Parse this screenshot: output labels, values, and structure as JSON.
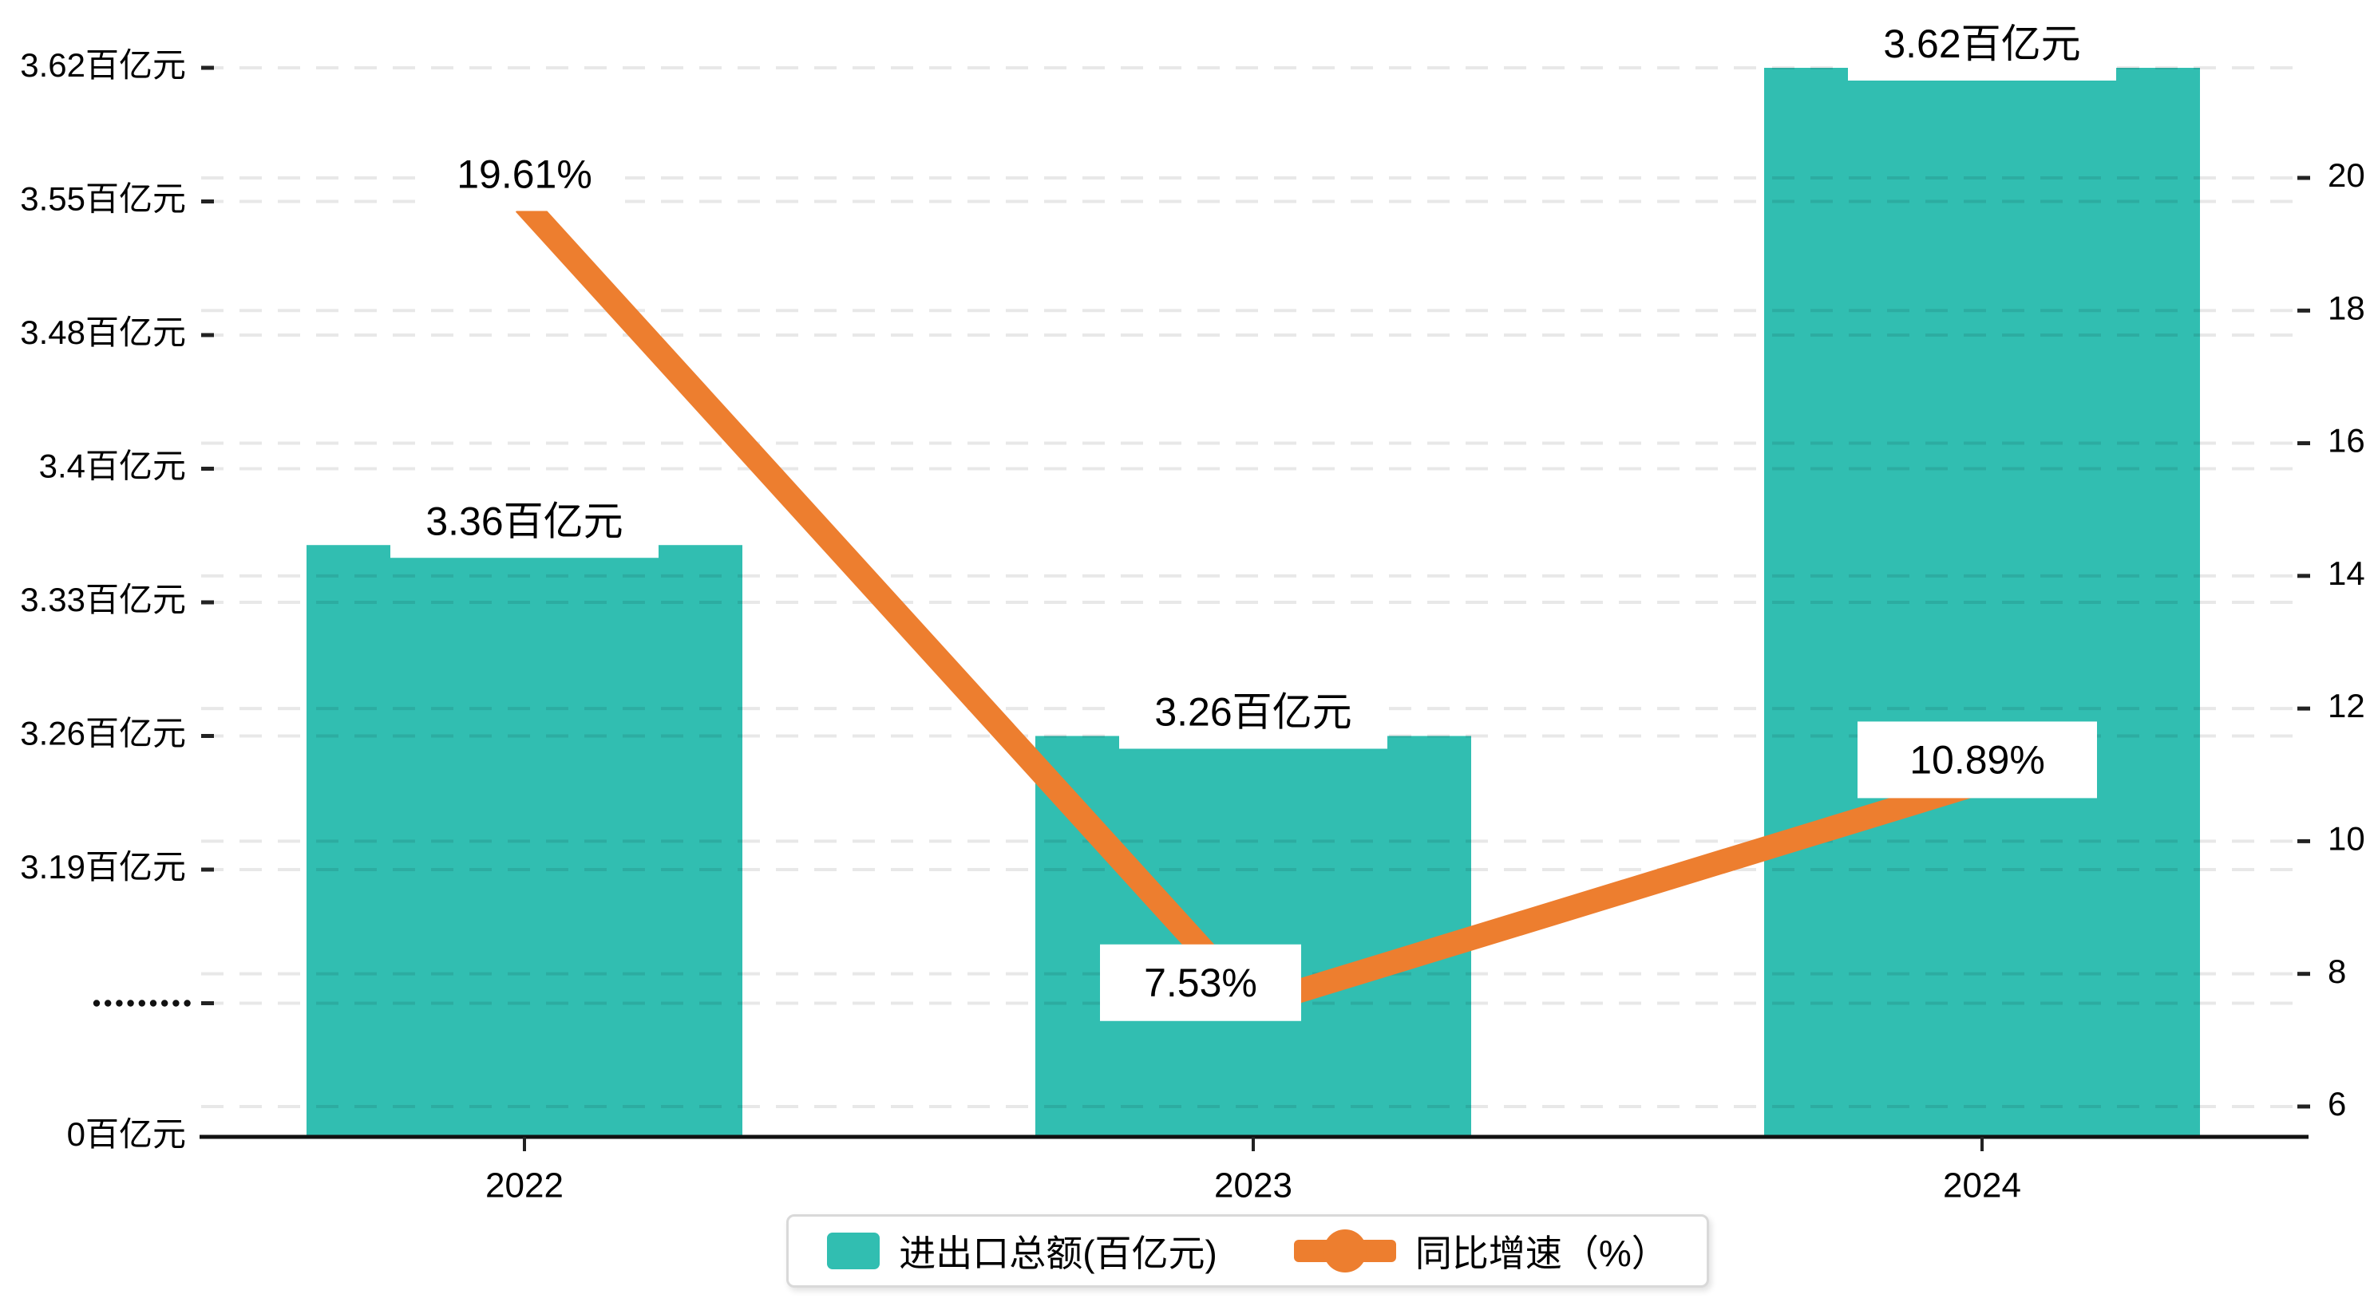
{
  "legend": {
    "items": [
      {
        "label": "进出口总额(百亿元)",
        "marker": "bar-swatch"
      },
      {
        "label": "同比增速（%）",
        "marker": "line-dot-swatch"
      }
    ]
  },
  "chart_data": {
    "type": "combo",
    "categories": [
      "2022",
      "2023",
      "2024"
    ],
    "series": [
      {
        "name": "进出口总额(百亿元)",
        "type": "bar",
        "axis": "left",
        "unit": "百亿元",
        "values": [
          3.36,
          3.26,
          3.62
        ],
        "data_labels": [
          "3.36百亿元",
          "3.26百亿元",
          "3.62百亿元"
        ],
        "color": "#31beb1"
      },
      {
        "name": "同比增速（%）",
        "type": "line",
        "axis": "right",
        "unit": "%",
        "values": [
          19.61,
          7.53,
          10.89
        ],
        "data_labels": [
          "19.61%",
          "7.53%",
          "10.89%"
        ],
        "color": "#ed7e2f"
      }
    ],
    "x_axis": {
      "tick_labels": [
        "2022",
        "2023",
        "2024"
      ]
    },
    "y_axis_left": {
      "unit": "百亿元",
      "has_axis_break": true,
      "tick_labels": [
        "3.62百亿元",
        "3.55百亿元",
        "3.48百亿元",
        "3.4百亿元",
        "3.33百亿元",
        "3.26百亿元",
        "3.19百亿元",
        "·········",
        "0百亿元"
      ],
      "tick_values": [
        3.62,
        3.55,
        3.48,
        3.4,
        3.33,
        3.26,
        3.19,
        null,
        0
      ]
    },
    "y_axis_right": {
      "tick_labels": [
        "20",
        "18",
        "16",
        "14",
        "12",
        "10",
        "8",
        "6"
      ],
      "tick_values": [
        20,
        18,
        16,
        14,
        12,
        10,
        8,
        6
      ],
      "range": [
        6,
        20
      ]
    },
    "grid": {
      "style": "dashed",
      "legend_position": "bottom"
    },
    "colors": {
      "bar": "#31beb1",
      "line": "#ed7e2f",
      "axis": "#111111",
      "gridline": "rgba(0,0,0,0.09)",
      "label_box": "#ffffff",
      "background": "#ffffff"
    }
  }
}
